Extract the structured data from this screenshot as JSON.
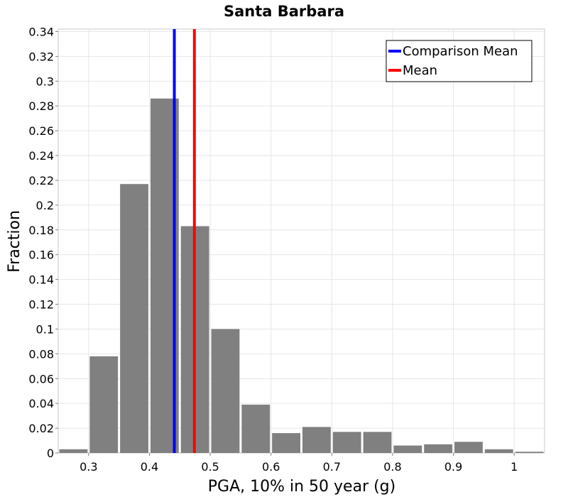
{
  "chart_data": {
    "type": "bar",
    "title": "Santa Barbara",
    "xlabel": "PGA, 10% in 50 year (g)",
    "ylabel": "Fraction",
    "xlim": [
      0.25,
      1.05
    ],
    "ylim": [
      0,
      0.342
    ],
    "grid": true,
    "legend_position": "top-right",
    "x_ticks": [
      {
        "value": 0.3,
        "label": "0.3"
      },
      {
        "value": 0.4,
        "label": "0.4"
      },
      {
        "value": 0.5,
        "label": "0.5"
      },
      {
        "value": 0.6,
        "label": "0.6"
      },
      {
        "value": 0.7,
        "label": "0.7"
      },
      {
        "value": 0.8,
        "label": "0.8"
      },
      {
        "value": 0.9,
        "label": "0.9"
      },
      {
        "value": 1.0,
        "label": "1"
      }
    ],
    "y_ticks": [
      {
        "value": 0,
        "label": "0"
      },
      {
        "value": 0.02,
        "label": "0.02"
      },
      {
        "value": 0.04,
        "label": "0.04"
      },
      {
        "value": 0.06,
        "label": "0.06"
      },
      {
        "value": 0.08,
        "label": "0.08"
      },
      {
        "value": 0.1,
        "label": "0.1"
      },
      {
        "value": 0.12,
        "label": "0.12"
      },
      {
        "value": 0.14,
        "label": "0.14"
      },
      {
        "value": 0.16,
        "label": "0.16"
      },
      {
        "value": 0.18,
        "label": "0.18"
      },
      {
        "value": 0.2,
        "label": "0.2"
      },
      {
        "value": 0.22,
        "label": "0.22"
      },
      {
        "value": 0.24,
        "label": "0.24"
      },
      {
        "value": 0.26,
        "label": "0.26"
      },
      {
        "value": 0.28,
        "label": "0.28"
      },
      {
        "value": 0.3,
        "label": "0.3"
      },
      {
        "value": 0.32,
        "label": "0.32"
      },
      {
        "value": 0.34,
        "label": "0.34"
      }
    ],
    "bin_width": 0.05,
    "bins": [
      {
        "x": 0.275,
        "value": 0.003
      },
      {
        "x": 0.325,
        "value": 0.078
      },
      {
        "x": 0.375,
        "value": 0.217
      },
      {
        "x": 0.425,
        "value": 0.286
      },
      {
        "x": 0.475,
        "value": 0.183
      },
      {
        "x": 0.525,
        "value": 0.1
      },
      {
        "x": 0.575,
        "value": 0.039
      },
      {
        "x": 0.625,
        "value": 0.016
      },
      {
        "x": 0.675,
        "value": 0.021
      },
      {
        "x": 0.725,
        "value": 0.017
      },
      {
        "x": 0.775,
        "value": 0.017
      },
      {
        "x": 0.825,
        "value": 0.006
      },
      {
        "x": 0.875,
        "value": 0.007
      },
      {
        "x": 0.925,
        "value": 0.009
      },
      {
        "x": 0.975,
        "value": 0.003
      },
      {
        "x": 1.025,
        "value": 0.001
      }
    ],
    "bar_color": "#808080",
    "reference_lines": [
      {
        "name": "Comparison Mean",
        "x": 0.441,
        "color": "#0000ff"
      },
      {
        "name": "Mean",
        "x": 0.474,
        "color": "#ff0000"
      }
    ]
  }
}
